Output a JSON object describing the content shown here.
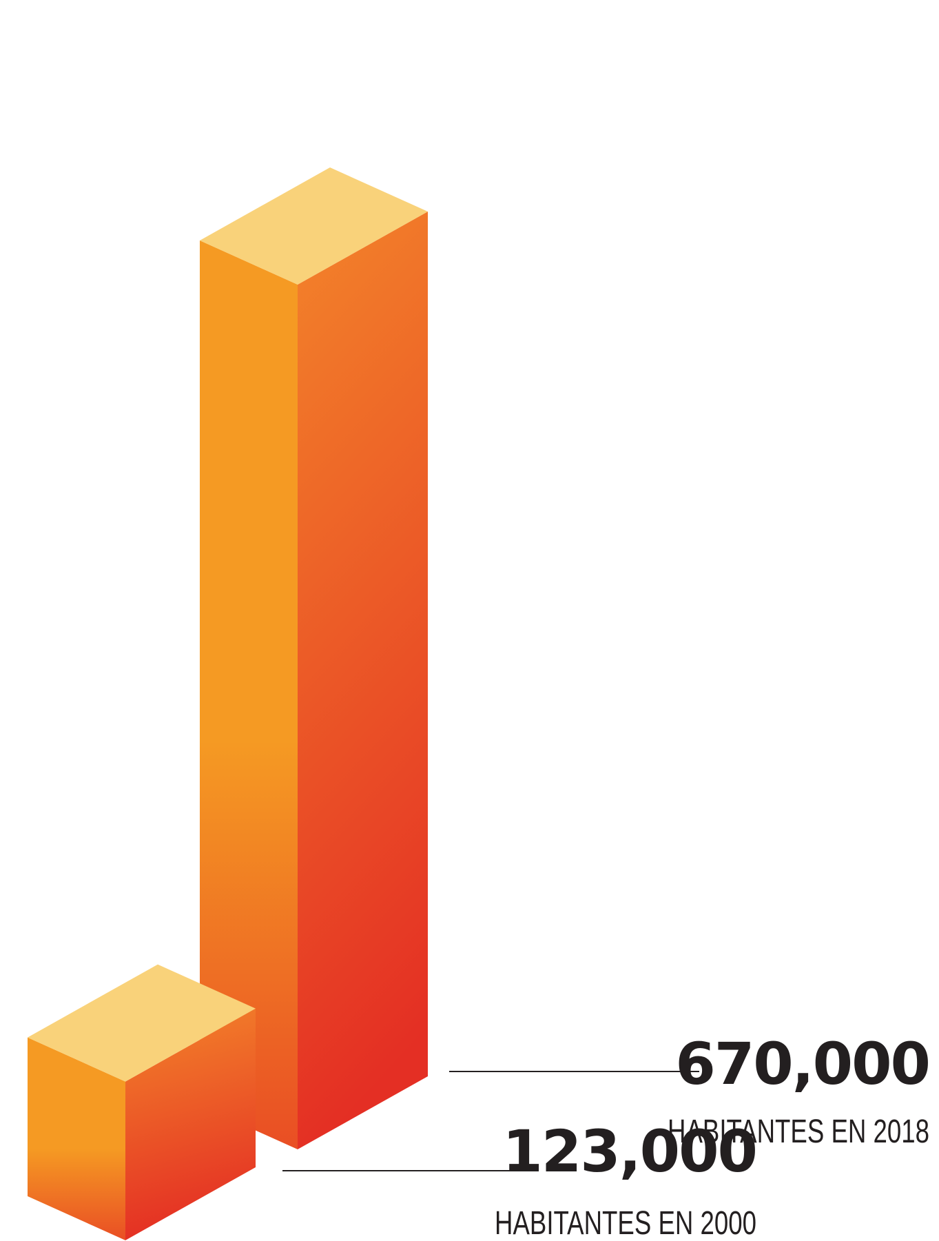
{
  "chart_data": {
    "type": "bar",
    "style": "isometric-3d",
    "categories": [
      "2000",
      "2018"
    ],
    "values": [
      123000,
      670000
    ],
    "annotations": [
      {
        "value_text": "123,000",
        "caption": "HABITANTES EN 2000"
      },
      {
        "value_text": "670,000",
        "caption": "HABITANTES EN 2018"
      }
    ],
    "title": "",
    "xlabel": "",
    "ylabel": "",
    "grid": false,
    "legend": "none"
  },
  "colors": {
    "top_face": "#f9d27a",
    "front_top": "#f59a23",
    "front_bottom": "#e94e24",
    "side_top": "#f3842a",
    "side_bottom": "#e42f24",
    "text": "#231f20",
    "leader_line": "#231f20"
  }
}
